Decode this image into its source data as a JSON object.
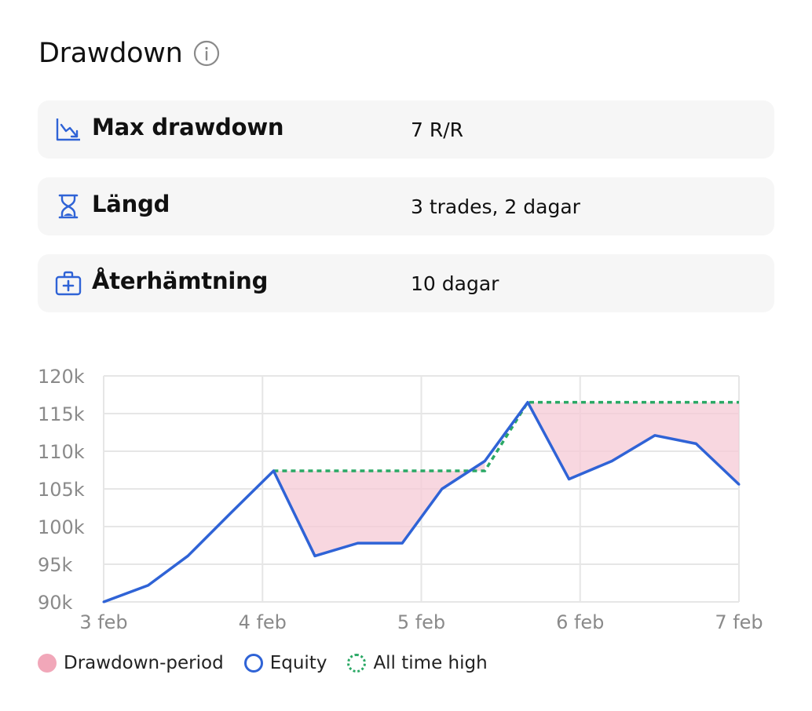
{
  "header": {
    "title": "Drawdown",
    "info_icon": "info-icon"
  },
  "stats": [
    {
      "icon": "trending-down-icon",
      "label": "Max drawdown",
      "value": "7 R/R"
    },
    {
      "icon": "hourglass-icon",
      "label": "Längd",
      "value": "3 trades, 2 dagar"
    },
    {
      "icon": "medical-kit-icon",
      "label": "Återhämtning",
      "value": "10 dagar"
    }
  ],
  "colors": {
    "equity": "#2f63d6",
    "all_time_high": "#2aa865",
    "drawdown_fill": "#f5c9d5",
    "drawdown_swatch": "#f1a7b9",
    "icon_blue": "#2f63d6"
  },
  "legend": {
    "drawdown": "Drawdown-period",
    "equity": "Equity",
    "ath": "All time high"
  },
  "chart_data": {
    "type": "line",
    "title": "",
    "xlabel": "",
    "ylabel": "",
    "x_ticks": [
      "3 feb",
      "4 feb",
      "5 feb",
      "6 feb",
      "7 feb"
    ],
    "y_ticks": [
      "90k",
      "95k",
      "100k",
      "105k",
      "110k",
      "115k",
      "120k"
    ],
    "x_unit": "days since 3 feb",
    "ylim": [
      90000,
      120000
    ],
    "xlim": [
      0,
      4
    ],
    "grid": true,
    "legend_position": "bottom-left",
    "series": [
      {
        "name": "Equity",
        "x": [
          0,
          0.28,
          0.53,
          0.8,
          1.07,
          1.33,
          1.6,
          1.88,
          2.13,
          2.4,
          2.67,
          2.93,
          3.2,
          3.47,
          3.73,
          4.0
        ],
        "y": [
          90000,
          92200,
          96100,
          101800,
          107400,
          96100,
          97800,
          97800,
          105000,
          108700,
          116500,
          106300,
          108700,
          112100,
          111000,
          105600
        ]
      },
      {
        "name": "All time high",
        "x": [
          1.07,
          2.4,
          2.67,
          4.0
        ],
        "y": [
          107400,
          107400,
          116500,
          116500
        ]
      }
    ],
    "drawdown_periods": [
      {
        "x_start": 1.07,
        "x_end": 2.4
      },
      {
        "x_start": 2.67,
        "x_end": 4.0
      }
    ]
  }
}
